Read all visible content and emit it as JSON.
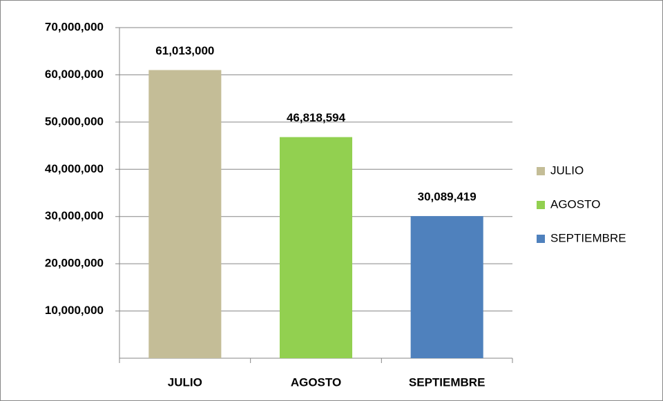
{
  "chart_data": {
    "type": "bar",
    "categories": [
      "JULIO",
      "AGOSTO",
      "SEPTIEMBRE"
    ],
    "values": [
      61013000,
      46818594,
      30089419
    ],
    "value_labels": [
      "61,013,000",
      "46,818,594",
      "30,089,419"
    ],
    "colors": [
      "#c4bd97",
      "#92d050",
      "#4f81bd"
    ],
    "ylim": [
      0,
      70000000
    ],
    "yticks": [
      {
        "value": 10000000,
        "label": "10,000,000"
      },
      {
        "value": 20000000,
        "label": "20,000,000"
      },
      {
        "value": 30000000,
        "label": "30,000,000"
      },
      {
        "value": 40000000,
        "label": "40,000,000"
      },
      {
        "value": 50000000,
        "label": "50,000,000"
      },
      {
        "value": 60000000,
        "label": "60,000,000"
      },
      {
        "value": 70000000,
        "label": "70,000,000"
      }
    ],
    "grid": true,
    "legend": "right"
  }
}
